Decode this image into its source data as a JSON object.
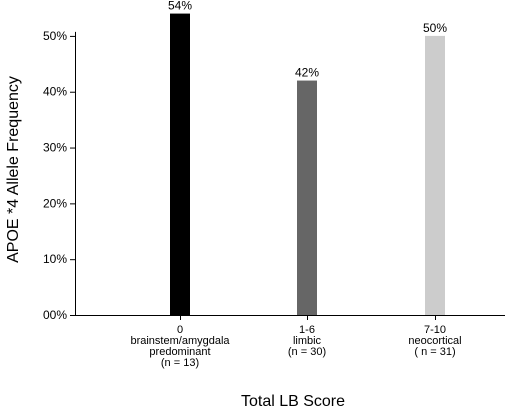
{
  "chart_data": {
    "type": "bar",
    "ylabel": "APOE *4 Allele Frequency",
    "xlabel": "Total LB Score",
    "ylim": [
      0,
      55
    ],
    "yticks": [
      0,
      10,
      20,
      30,
      40,
      50
    ],
    "ytick_labels": [
      "00%",
      "10%",
      "20%",
      "30%",
      "40%",
      "50%"
    ],
    "grid": false,
    "categories": [
      {
        "lines": [
          "0",
          "brainstem/amygdala",
          "predominant",
          "(n = 13)"
        ]
      },
      {
        "lines": [
          "1-6",
          "limbic",
          "(n = 30)"
        ]
      },
      {
        "lines": [
          "7-10",
          "neocortical",
          "( n = 31)"
        ]
      }
    ],
    "values": [
      54,
      42,
      50
    ],
    "value_labels": [
      "54%",
      "42%",
      "50%"
    ],
    "colors": [
      "#000000",
      "#666666",
      "#cccccc"
    ]
  }
}
